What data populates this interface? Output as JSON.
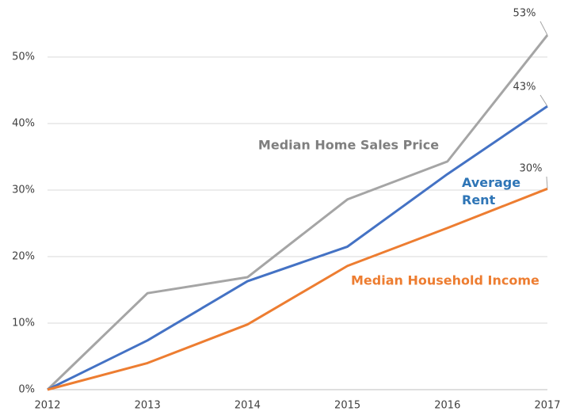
{
  "chart_data": {
    "type": "line",
    "categories": [
      "2012",
      "2013",
      "2014",
      "2015",
      "2016",
      "2017"
    ],
    "series": [
      {
        "name": "Median Home Sales Price",
        "color": "#a5a5a5",
        "label_color": "#7f7f7f",
        "values": [
          0,
          14.5,
          16.9,
          28.6,
          34.3,
          53.3
        ],
        "value_labels": [
          null,
          null,
          null,
          null,
          null,
          "53%"
        ]
      },
      {
        "name": "Average Rent",
        "color": "#4472c4",
        "label_color": "#2e75b6",
        "values": [
          0,
          7.4,
          16.3,
          21.5,
          32.4,
          42.6
        ],
        "value_labels": [
          null,
          null,
          null,
          null,
          null,
          "43%"
        ]
      },
      {
        "name": "Median Household Income",
        "color": "#ed7d31",
        "label_color": "#ed7d31",
        "values": [
          0,
          4.0,
          9.8,
          18.6,
          24.3,
          30.2
        ],
        "value_labels": [
          null,
          null,
          null,
          null,
          null,
          "30%"
        ]
      }
    ],
    "ylim": [
      0,
      50
    ],
    "yticks": [
      {
        "value": 0,
        "label": "0%"
      },
      {
        "value": 10,
        "label": "10%"
      },
      {
        "value": 20,
        "label": "20%"
      },
      {
        "value": 30,
        "label": "30%"
      },
      {
        "value": 40,
        "label": "40%"
      },
      {
        "value": 50,
        "label": "50%"
      }
    ],
    "grid": true
  }
}
